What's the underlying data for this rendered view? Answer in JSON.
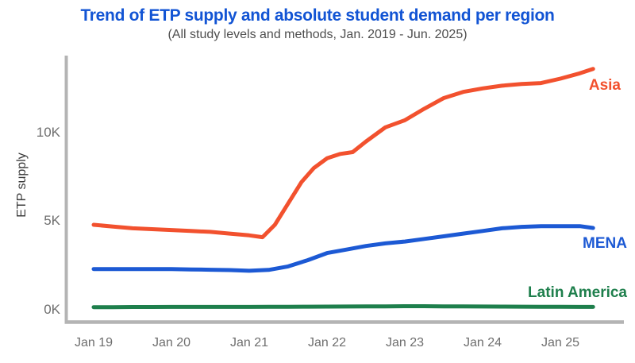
{
  "chart_data": {
    "type": "line",
    "title": "Trend of ETP supply and absolute student demand per region",
    "subtitle": "(All study levels and methods, Jan. 2019 - Jun. 2025)",
    "ylabel": "ETP supply",
    "grid": false,
    "legend_position": "inline-right-of-lines",
    "x_range_years": [
      2019.0,
      2025.42
    ],
    "x_axis": {
      "ticks": [
        "Jan 19",
        "Jan 20",
        "Jan 21",
        "Jan 22",
        "Jan 23",
        "Jan 24",
        "Jan 25"
      ],
      "tick_years": [
        2019,
        2020,
        2021,
        2022,
        2023,
        2024,
        2025
      ]
    },
    "y_axis": {
      "ticks": [
        "0K",
        "5K",
        "10K"
      ],
      "values": [
        0,
        5000,
        10000
      ],
      "range": [
        0,
        14200
      ]
    },
    "series": [
      {
        "name": "Asia",
        "color": "#F2512E",
        "x": [
          2019.0,
          2019.25,
          2019.5,
          2019.75,
          2020.0,
          2020.25,
          2020.5,
          2020.75,
          2021.0,
          2021.17,
          2021.33,
          2021.5,
          2021.67,
          2021.83,
          2022.0,
          2022.17,
          2022.33,
          2022.5,
          2022.75,
          2023.0,
          2023.25,
          2023.5,
          2023.75,
          2024.0,
          2024.25,
          2024.5,
          2024.75,
          2025.0,
          2025.25,
          2025.42
        ],
        "values": [
          4800,
          4700,
          4600,
          4550,
          4500,
          4450,
          4400,
          4300,
          4200,
          4100,
          4800,
          6000,
          7200,
          8000,
          8550,
          8800,
          8900,
          9500,
          10300,
          10700,
          11350,
          11950,
          12300,
          12500,
          12650,
          12750,
          12800,
          13050,
          13350,
          13600
        ]
      },
      {
        "name": "MENA",
        "color": "#1C59D4",
        "x": [
          2019.0,
          2019.25,
          2019.5,
          2019.75,
          2020.0,
          2020.25,
          2020.5,
          2020.75,
          2021.0,
          2021.25,
          2021.5,
          2021.75,
          2022.0,
          2022.25,
          2022.5,
          2022.75,
          2023.0,
          2023.25,
          2023.5,
          2023.75,
          2024.0,
          2024.25,
          2024.5,
          2024.75,
          2025.0,
          2025.25,
          2025.42
        ],
        "values": [
          2300,
          2300,
          2300,
          2300,
          2300,
          2280,
          2260,
          2240,
          2200,
          2250,
          2450,
          2800,
          3200,
          3400,
          3600,
          3750,
          3850,
          4000,
          4150,
          4300,
          4450,
          4600,
          4680,
          4720,
          4720,
          4720,
          4620
        ]
      },
      {
        "name": "Latin America",
        "color": "#1E7F4C",
        "x": [
          2019.0,
          2019.25,
          2019.5,
          2019.75,
          2020.0,
          2020.25,
          2020.5,
          2020.75,
          2021.0,
          2021.25,
          2021.5,
          2021.75,
          2022.0,
          2022.25,
          2022.5,
          2022.75,
          2023.0,
          2023.25,
          2023.5,
          2023.75,
          2024.0,
          2024.25,
          2024.5,
          2024.75,
          2025.0,
          2025.25,
          2025.42
        ],
        "values": [
          150,
          150,
          155,
          155,
          160,
          160,
          160,
          160,
          160,
          165,
          170,
          175,
          180,
          185,
          190,
          195,
          200,
          200,
          195,
          190,
          185,
          180,
          175,
          170,
          165,
          160,
          160
        ]
      }
    ],
    "colors": {
      "title": "#1254D4",
      "subtitle": "#4E4E4E",
      "axis_line": "#B4B4B4",
      "tick_text": "#6E6E6E",
      "ylabel_text": "#3D3D3D"
    }
  }
}
